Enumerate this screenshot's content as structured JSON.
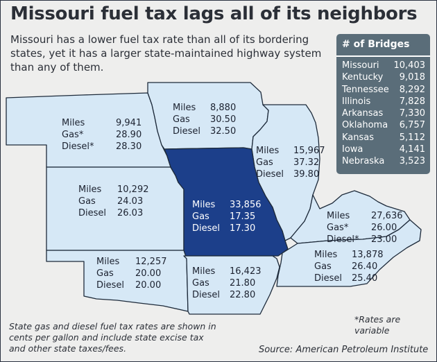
{
  "title": "Missouri fuel tax lags all of its neighbors",
  "subtitle": "Missouri has a lower fuel tax rate than all of its bordering states, yet it has a larger state-maintained highway system than any of them.",
  "bridges": {
    "header": "# of Bridges",
    "rows": [
      {
        "state": "Missouri",
        "count": "10,403"
      },
      {
        "state": "Kentucky",
        "count": "9,018"
      },
      {
        "state": "Tennessee",
        "count": "8,292"
      },
      {
        "state": "Illinois",
        "count": "7,828"
      },
      {
        "state": "Arkansas",
        "count": "7,330"
      },
      {
        "state": "Oklahoma",
        "count": "6,757"
      },
      {
        "state": "Kansas",
        "count": "5,112"
      },
      {
        "state": "Iowa",
        "count": "4,141"
      },
      {
        "state": "Nebraska",
        "count": "3,523"
      }
    ]
  },
  "states": {
    "nebraska": {
      "miles_label": "Miles",
      "miles": "9,941",
      "gas_label": "Gas*",
      "gas": "28.90",
      "diesel_label": "Diesel*",
      "diesel": "28.30"
    },
    "iowa": {
      "miles_label": "Miles",
      "miles": "8,880",
      "gas_label": "Gas",
      "gas": "30.50",
      "diesel_label": "Diesel",
      "diesel": "32.50"
    },
    "illinois": {
      "miles_label": "Miles",
      "miles": "15,967",
      "gas_label": "Gas",
      "gas": "37.32",
      "diesel_label": "Diesel",
      "diesel": "39.80"
    },
    "kansas": {
      "miles_label": "Miles",
      "miles": "10,292",
      "gas_label": "Gas",
      "gas": "24.03",
      "diesel_label": "Diesel",
      "diesel": "26.03"
    },
    "missouri": {
      "miles_label": "Miles",
      "miles": "33,856",
      "gas_label": "Gas",
      "gas": "17.35",
      "diesel_label": "Diesel",
      "diesel": "17.30"
    },
    "kentucky": {
      "miles_label": "Miles",
      "miles": "27,636",
      "gas_label": "Gas*",
      "gas": "26.00",
      "diesel_label": "Diesel*",
      "diesel": "23.00"
    },
    "oklahoma": {
      "miles_label": "Miles",
      "miles": "12,257",
      "gas_label": "Gas",
      "gas": "20.00",
      "diesel_label": "Diesel",
      "diesel": "20.00"
    },
    "arkansas": {
      "miles_label": "Miles",
      "miles": "16,423",
      "gas_label": "Gas",
      "gas": "21.80",
      "diesel_label": "Diesel",
      "diesel": "22.80"
    },
    "tennessee": {
      "miles_label": "Miles",
      "miles": "13,878",
      "gas_label": "Gas",
      "gas": "26.40",
      "diesel_label": "Diesel",
      "diesel": "25.40"
    }
  },
  "notes": {
    "variable": "*Rates are variable",
    "footnote": "State gas and diesel fuel tax rates are shown in cents per gallon and include state excise tax and other state taxes/fees.",
    "source": "Source: American Petroleum Institute"
  },
  "colors": {
    "missouri_fill": "#1c3f8a",
    "neighbor_fill": "#d6e8f6",
    "panel": "#5a6d79",
    "background": "#eeeeed"
  }
}
